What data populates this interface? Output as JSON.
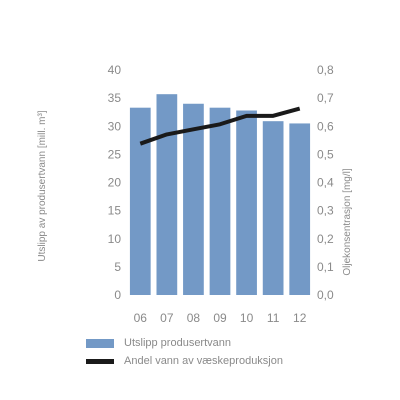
{
  "colors": {
    "bar": "#7399c6",
    "line": "#1a1a1a",
    "text": "#8a8a8a"
  },
  "chart_data": {
    "type": "bar",
    "categories": [
      "06",
      "07",
      "08",
      "09",
      "10",
      "11",
      "12"
    ],
    "series": [
      {
        "name": "Utslipp produsertvann",
        "type": "bar",
        "axis": "left",
        "values": [
          33.3,
          35.7,
          34.0,
          33.3,
          32.8,
          30.9,
          30.5
        ]
      },
      {
        "name": "Andel vann av væskeproduksjon",
        "type": "line",
        "axis": "right",
        "values": [
          0.538,
          0.571,
          0.589,
          0.607,
          0.637,
          0.637,
          0.663
        ]
      }
    ],
    "ylabel": "Utslipp av produsertvann [mill. m³]",
    "y2label": "Oljekonsentrasjon [mg/l]",
    "ylim": [
      0,
      40
    ],
    "y2lim": [
      0,
      0.8
    ],
    "yticks": [
      "0",
      "5",
      "10",
      "15",
      "20",
      "25",
      "30",
      "35",
      "40"
    ],
    "y2ticks": [
      "0,0",
      "0,1",
      "0,2",
      "0,3",
      "0,4",
      "0,5",
      "0,6",
      "0,7",
      "0,8"
    ],
    "grid": false,
    "legend_position": "bottom-left"
  }
}
